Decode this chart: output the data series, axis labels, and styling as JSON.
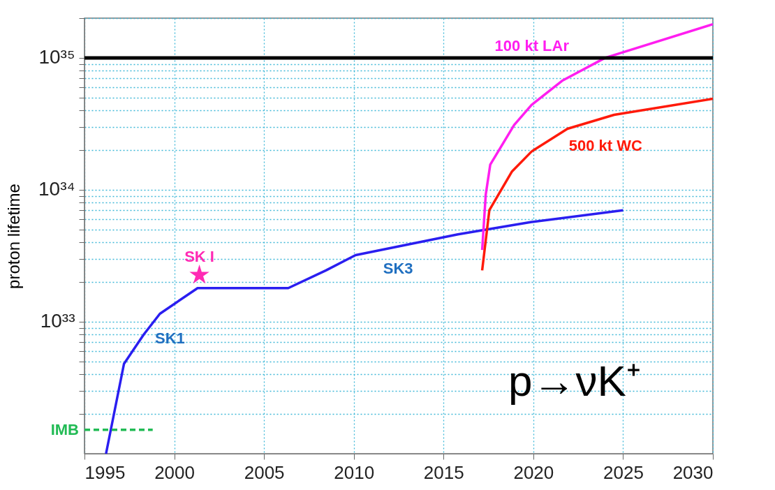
{
  "chart_data": {
    "type": "line",
    "ylabel": "proton lifetime",
    "log": "y",
    "grid": true,
    "xlim": [
      1995,
      2030
    ],
    "xticks": [
      1995,
      2000,
      2005,
      2010,
      2015,
      2020,
      2025,
      2030
    ],
    "ylim": [
      1e+32,
      2e+35
    ],
    "yticks": [
      {
        "value": 2e+32,
        "label": null
      },
      {
        "value": 3e+32,
        "label": null
      },
      {
        "value": 4e+32,
        "label": null
      },
      {
        "value": 5e+32,
        "label": null
      },
      {
        "value": 6e+32,
        "label": null
      },
      {
        "value": 7e+32,
        "label": null
      },
      {
        "value": 8e+32,
        "label": null
      },
      {
        "value": 9e+32,
        "label": null
      },
      {
        "value": 1e+33,
        "label": "10³³"
      },
      {
        "value": 2e+33,
        "label": null
      },
      {
        "value": 3e+33,
        "label": null
      },
      {
        "value": 4e+33,
        "label": null
      },
      {
        "value": 5e+33,
        "label": null
      },
      {
        "value": 6e+33,
        "label": null
      },
      {
        "value": 7e+33,
        "label": null
      },
      {
        "value": 8e+33,
        "label": null
      },
      {
        "value": 9e+33,
        "label": null
      },
      {
        "value": 1e+34,
        "label": "10³⁴"
      },
      {
        "value": 2e+34,
        "label": null
      },
      {
        "value": 3e+34,
        "label": null
      },
      {
        "value": 4e+34,
        "label": null
      },
      {
        "value": 5e+34,
        "label": null
      },
      {
        "value": 6e+34,
        "label": null
      },
      {
        "value": 7e+34,
        "label": null
      },
      {
        "value": 8e+34,
        "label": null
      },
      {
        "value": 9e+34,
        "label": null
      },
      {
        "value": 1e+35,
        "label": "10³⁵"
      },
      {
        "value": 2e+35,
        "label": null
      }
    ],
    "series": [
      {
        "color": "#2a1ef0",
        "x": [
          1996.2,
          1997.2,
          1998.3,
          1999.2,
          2001.3,
          2006.35,
          2008.45,
          2010.1,
          2015.8,
          2019.9,
          2025
        ],
        "values": [
          1e+32,
          4.8e+32,
          8e+32,
          1.15e+33,
          1.8e+33,
          1.8e+33,
          2.45e+33,
          3.2e+33,
          4.6e+33,
          5.7e+33,
          7e+33
        ]
      },
      {
        "name": "100 kt LAr",
        "color": "#ff1ef0",
        "x": [
          2017.15,
          2017.35,
          2017.6,
          2018.93,
          2019.9,
          2021.6,
          2024,
          2030
        ],
        "values": [
          3.5e+33,
          9.2e+33,
          1.55e+34,
          3.1e+34,
          4.4e+34,
          6.7e+34,
          1e+35,
          1.8e+35
        ]
      },
      {
        "name": "500 kt WC",
        "color": "#ff1a0a",
        "x": [
          2017.15,
          2017.55,
          2018.8,
          2019.9,
          2021.9,
          2024.5,
          2030
        ],
        "values": [
          2.45e+33,
          7e+33,
          1.37e+34,
          1.95e+34,
          2.9e+34,
          3.7e+34,
          4.9e+34
        ]
      },
      {
        "name": "IMB",
        "color": "#22bb55",
        "line_style": "dashed",
        "x": [
          1995,
          1998.8
        ],
        "values": [
          1.52e+32,
          1.52e+32
        ]
      },
      {
        "name": "SK I",
        "type": "scatter",
        "marker": "star",
        "color": "#ff2ab4",
        "x": [
          2001.4
        ],
        "values": [
          2.26e+33
        ]
      }
    ],
    "ref_lines": [
      {
        "axis": "y",
        "value": 1e+35,
        "color": "#000000"
      }
    ],
    "annotations": [
      "SK1",
      "SK3",
      "p→νK⁺"
    ]
  }
}
